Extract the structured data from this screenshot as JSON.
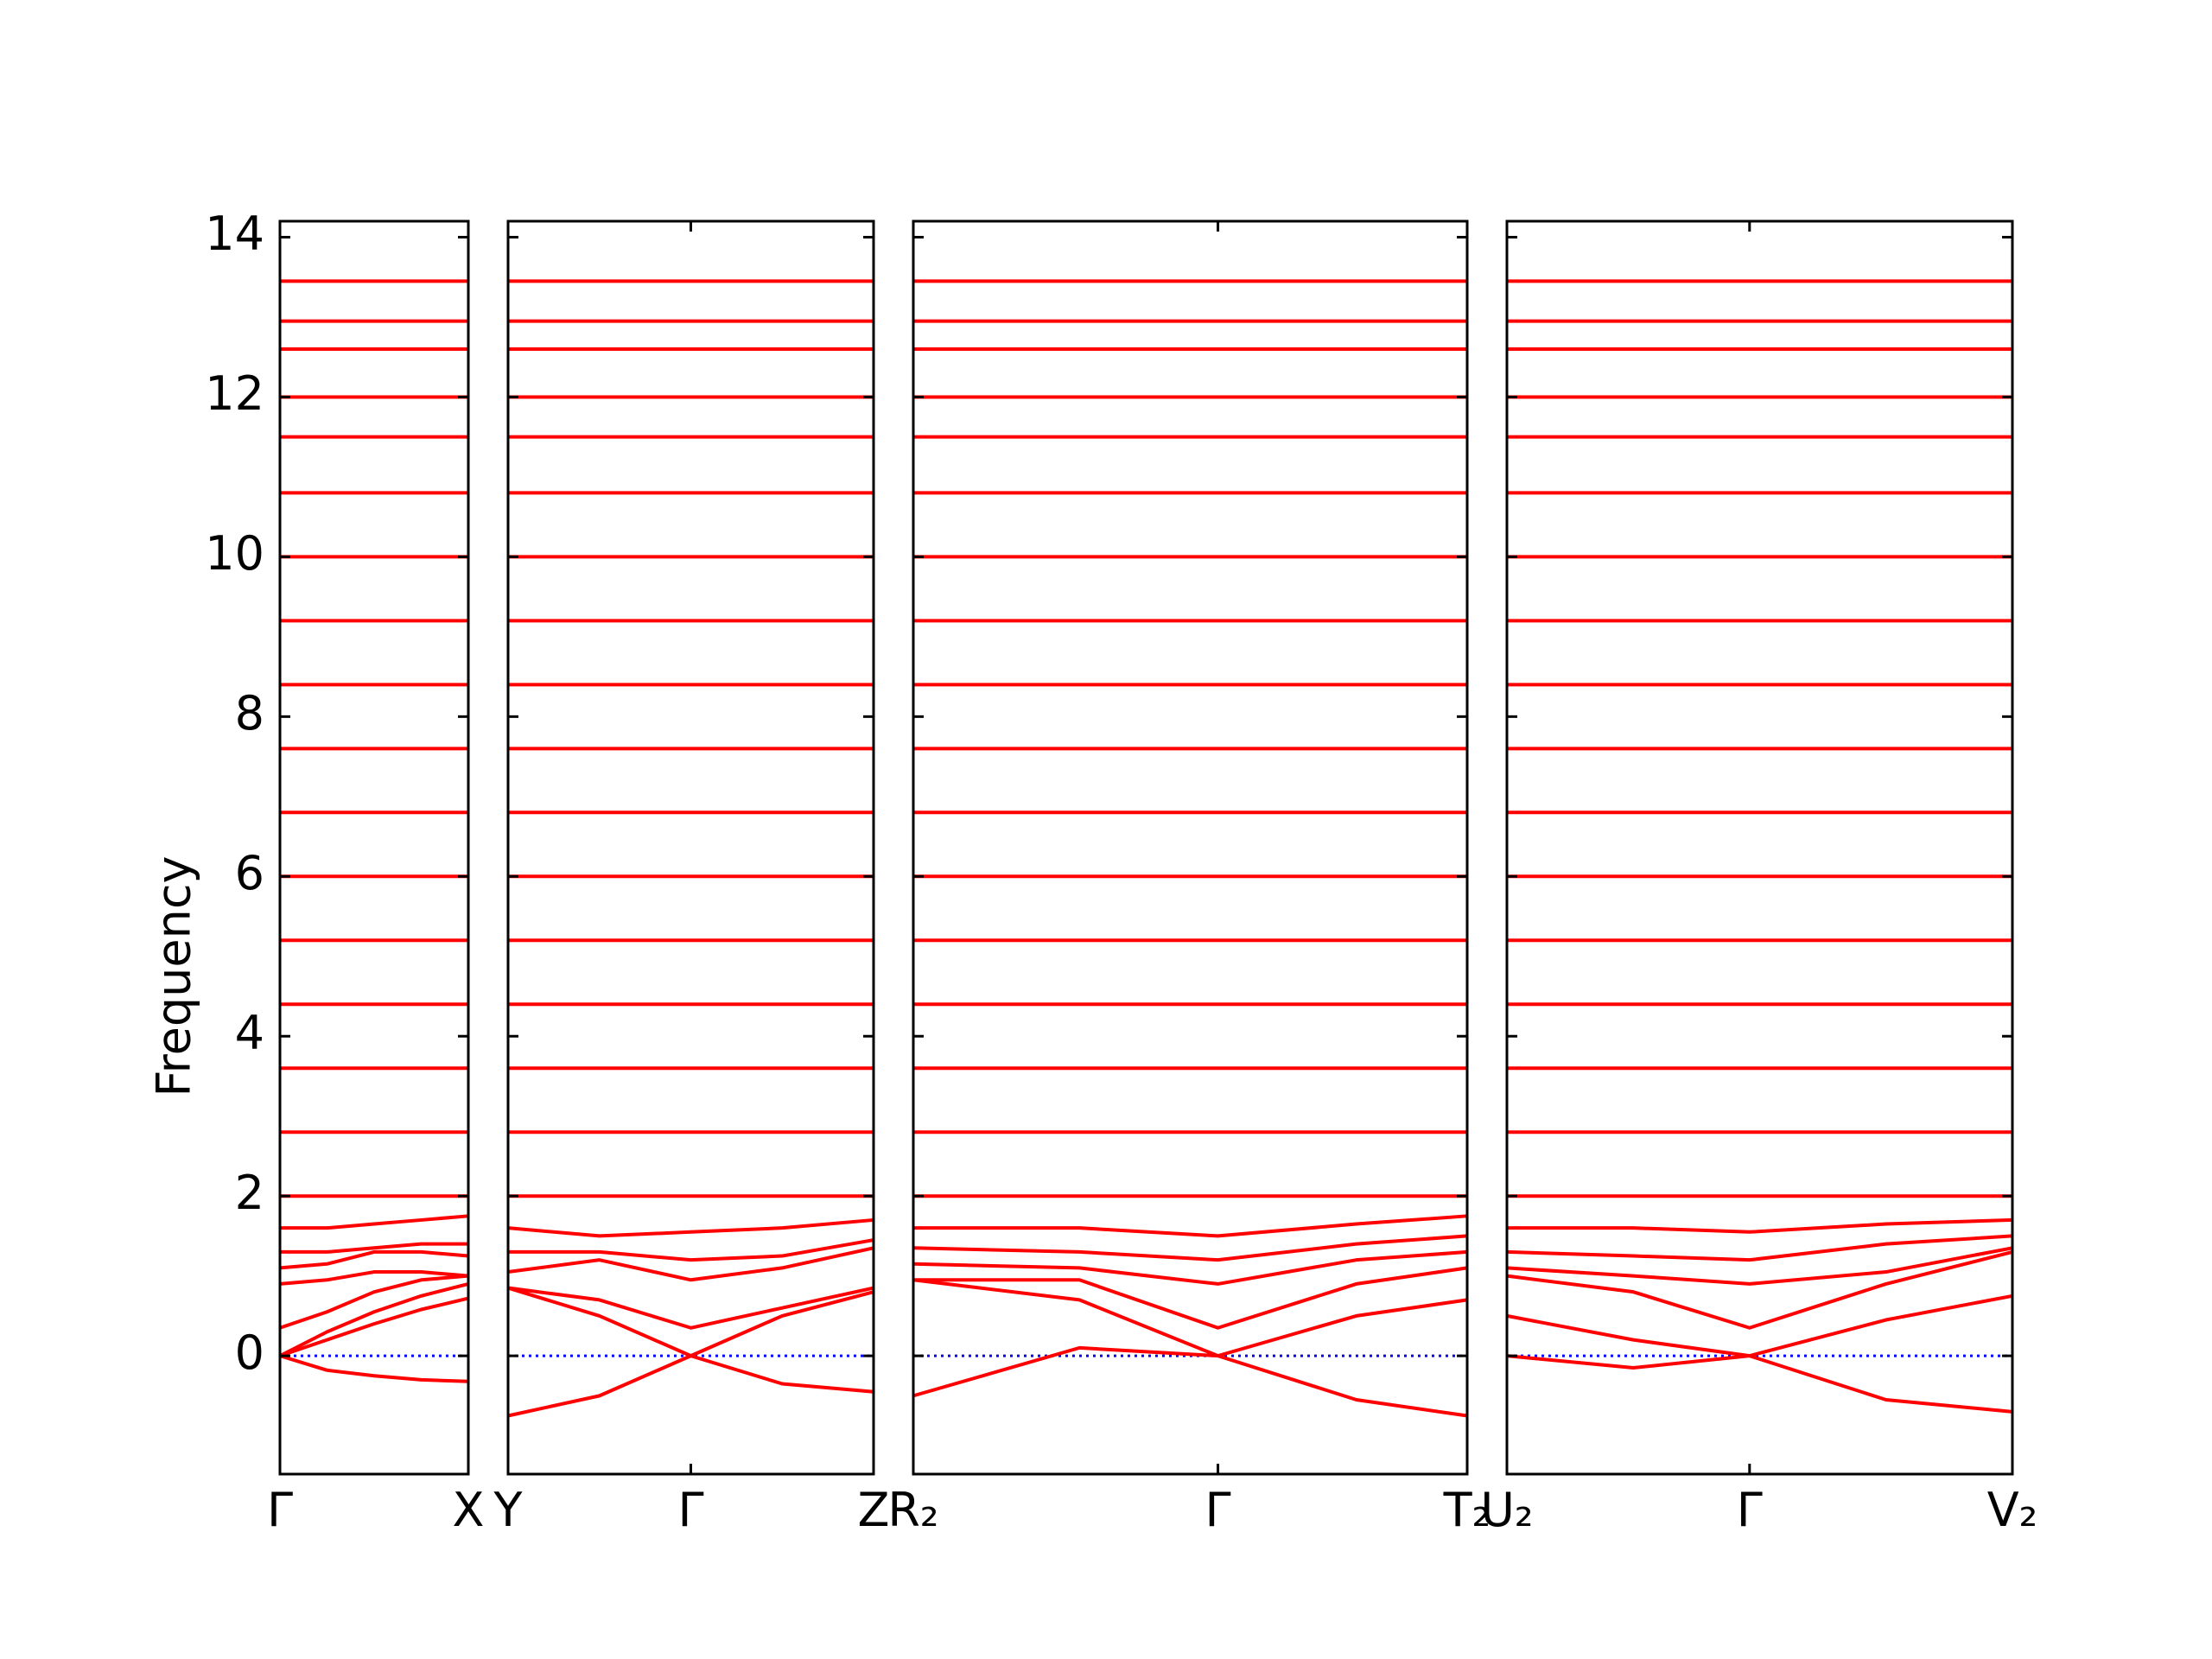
{
  "chart_data": {
    "type": "line",
    "ylabel": "Frequency",
    "color": "#ff0000",
    "zero_line_color": "#0000ff",
    "ylim": [
      -1.48,
      14.2
    ],
    "yticks": [
      0,
      2,
      4,
      6,
      8,
      10,
      12,
      14
    ],
    "panels": [
      {
        "xlim": [
          0,
          1
        ],
        "xticks": [
          {
            "value": 0,
            "label": "Γ"
          },
          {
            "value": 1,
            "label": "X"
          }
        ],
        "x": [
          0,
          0.25,
          0.5,
          0.75,
          1
        ],
        "series": [
          {
            "values": [
              0,
              -0.18,
              -0.25,
              -0.3,
              -0.32
            ]
          },
          {
            "values": [
              0,
              0.2,
              0.4,
              0.58,
              0.72
            ]
          },
          {
            "values": [
              0,
              0.3,
              0.55,
              0.75,
              0.9
            ]
          },
          {
            "values": [
              0.35,
              0.55,
              0.8,
              0.95,
              1.0
            ]
          },
          {
            "values": [
              0.9,
              0.95,
              1.05,
              1.05,
              1.0
            ]
          },
          {
            "values": [
              1.1,
              1.15,
              1.3,
              1.3,
              1.25
            ]
          },
          {
            "values": [
              1.3,
              1.3,
              1.35,
              1.4,
              1.4
            ]
          },
          {
            "values": [
              1.6,
              1.6,
              1.65,
              1.7,
              1.75
            ]
          },
          {
            "values": [
              2.0,
              2.0,
              2.0,
              2.0,
              2.0
            ]
          },
          {
            "values": [
              2.8,
              2.8,
              2.8,
              2.8,
              2.8
            ]
          },
          {
            "values": [
              3.6,
              3.6,
              3.6,
              3.6,
              3.6
            ]
          },
          {
            "values": [
              4.4,
              4.4,
              4.4,
              4.4,
              4.4
            ]
          },
          {
            "values": [
              5.2,
              5.2,
              5.2,
              5.2,
              5.2
            ]
          },
          {
            "values": [
              6.0,
              6.0,
              6.0,
              6.0,
              6.0
            ]
          },
          {
            "values": [
              6.8,
              6.8,
              6.8,
              6.8,
              6.8
            ]
          },
          {
            "values": [
              7.6,
              7.6,
              7.6,
              7.6,
              7.6
            ]
          },
          {
            "values": [
              8.4,
              8.4,
              8.4,
              8.4,
              8.4
            ]
          },
          {
            "values": [
              9.2,
              9.2,
              9.2,
              9.2,
              9.2
            ]
          },
          {
            "values": [
              10.0,
              10.0,
              10.0,
              10.0,
              10.0
            ]
          },
          {
            "values": [
              10.8,
              10.8,
              10.8,
              10.8,
              10.8
            ]
          },
          {
            "values": [
              11.5,
              11.5,
              11.5,
              11.5,
              11.5
            ]
          },
          {
            "values": [
              12.0,
              12.0,
              12.0,
              12.0,
              12.0
            ]
          },
          {
            "values": [
              12.6,
              12.6,
              12.6,
              12.6,
              12.6
            ]
          },
          {
            "values": [
              12.95,
              12.95,
              12.95,
              12.95,
              12.95
            ]
          },
          {
            "values": [
              13.45,
              13.45,
              13.45,
              13.45,
              13.45
            ]
          }
        ]
      },
      {
        "xlim": [
          0,
          2
        ],
        "xticks": [
          {
            "value": 0,
            "label": "Y"
          },
          {
            "value": 1,
            "label": "Γ"
          },
          {
            "value": 2,
            "label": "Z"
          }
        ],
        "x": [
          0,
          0.5,
          1,
          1.5,
          2
        ],
        "series": [
          {
            "values": [
              -0.75,
              -0.5,
              0,
              -0.35,
              -0.45
            ]
          },
          {
            "values": [
              0.85,
              0.5,
              0,
              0.5,
              0.8
            ]
          },
          {
            "values": [
              0.85,
              0.7,
              0.35,
              0.6,
              0.85
            ]
          },
          {
            "values": [
              1.05,
              1.2,
              0.95,
              1.1,
              1.35
            ]
          },
          {
            "values": [
              1.3,
              1.3,
              1.2,
              1.25,
              1.45
            ]
          },
          {
            "values": [
              1.6,
              1.5,
              1.55,
              1.6,
              1.7
            ]
          },
          {
            "values": [
              2.0,
              2.0,
              2.0,
              2.0,
              2.0
            ]
          },
          {
            "values": [
              2.8,
              2.8,
              2.8,
              2.8,
              2.8
            ]
          },
          {
            "values": [
              3.6,
              3.6,
              3.6,
              3.6,
              3.6
            ]
          },
          {
            "values": [
              4.4,
              4.4,
              4.4,
              4.4,
              4.4
            ]
          },
          {
            "values": [
              5.2,
              5.2,
              5.2,
              5.2,
              5.2
            ]
          },
          {
            "values": [
              6.0,
              6.0,
              6.0,
              6.0,
              6.0
            ]
          },
          {
            "values": [
              6.8,
              6.8,
              6.8,
              6.8,
              6.8
            ]
          },
          {
            "values": [
              7.6,
              7.6,
              7.6,
              7.6,
              7.6
            ]
          },
          {
            "values": [
              8.4,
              8.4,
              8.4,
              8.4,
              8.4
            ]
          },
          {
            "values": [
              9.2,
              9.2,
              9.2,
              9.2,
              9.2
            ]
          },
          {
            "values": [
              10.0,
              10.0,
              10.0,
              10.0,
              10.0
            ]
          },
          {
            "values": [
              10.8,
              10.8,
              10.8,
              10.8,
              10.8
            ]
          },
          {
            "values": [
              11.5,
              11.5,
              11.5,
              11.5,
              11.5
            ]
          },
          {
            "values": [
              12.0,
              12.0,
              12.0,
              12.0,
              12.0
            ]
          },
          {
            "values": [
              12.6,
              12.6,
              12.6,
              12.6,
              12.6
            ]
          },
          {
            "values": [
              12.95,
              12.95,
              12.95,
              12.95,
              12.95
            ]
          },
          {
            "values": [
              13.45,
              13.45,
              13.45,
              13.45,
              13.45
            ]
          }
        ]
      },
      {
        "xlim": [
          0,
          1
        ],
        "xticks": [
          {
            "value": 0,
            "label": "R₂"
          },
          {
            "value": 0.55,
            "label": "Γ"
          },
          {
            "value": 1,
            "label": "T₂"
          }
        ],
        "x": [
          0,
          0.3,
          0.55,
          0.8,
          1
        ],
        "series": [
          {
            "values": [
              -0.5,
              0.1,
              0,
              -0.55,
              -0.75
            ]
          },
          {
            "values": [
              0.95,
              0.7,
              0,
              0.5,
              0.7
            ]
          },
          {
            "values": [
              0.95,
              0.95,
              0.35,
              0.9,
              1.1
            ]
          },
          {
            "values": [
              1.15,
              1.1,
              0.9,
              1.2,
              1.3
            ]
          },
          {
            "values": [
              1.35,
              1.3,
              1.2,
              1.4,
              1.5
            ]
          },
          {
            "values": [
              1.6,
              1.6,
              1.5,
              1.65,
              1.75
            ]
          },
          {
            "values": [
              2.0,
              2.0,
              2.0,
              2.0,
              2.0
            ]
          },
          {
            "values": [
              2.8,
              2.8,
              2.8,
              2.8,
              2.8
            ]
          },
          {
            "values": [
              3.6,
              3.6,
              3.6,
              3.6,
              3.6
            ]
          },
          {
            "values": [
              4.4,
              4.4,
              4.4,
              4.4,
              4.4
            ]
          },
          {
            "values": [
              5.2,
              5.2,
              5.2,
              5.2,
              5.2
            ]
          },
          {
            "values": [
              6.0,
              6.0,
              6.0,
              6.0,
              6.0
            ]
          },
          {
            "values": [
              6.8,
              6.8,
              6.8,
              6.8,
              6.8
            ]
          },
          {
            "values": [
              7.6,
              7.6,
              7.6,
              7.6,
              7.6
            ]
          },
          {
            "values": [
              8.4,
              8.4,
              8.4,
              8.4,
              8.4
            ]
          },
          {
            "values": [
              9.2,
              9.2,
              9.2,
              9.2,
              9.2
            ]
          },
          {
            "values": [
              10.0,
              10.0,
              10.0,
              10.0,
              10.0
            ]
          },
          {
            "values": [
              10.8,
              10.8,
              10.8,
              10.8,
              10.8
            ]
          },
          {
            "values": [
              11.5,
              11.5,
              11.5,
              11.5,
              11.5
            ]
          },
          {
            "values": [
              12.0,
              12.0,
              12.0,
              12.0,
              12.0
            ]
          },
          {
            "values": [
              12.6,
              12.6,
              12.6,
              12.6,
              12.6
            ]
          },
          {
            "values": [
              12.95,
              12.95,
              12.95,
              12.95,
              12.95
            ]
          },
          {
            "values": [
              13.45,
              13.45,
              13.45,
              13.45,
              13.45
            ]
          }
        ]
      },
      {
        "xlim": [
          0,
          1
        ],
        "xticks": [
          {
            "value": 0,
            "label": "U₂"
          },
          {
            "value": 0.48,
            "label": "Γ"
          },
          {
            "value": 1,
            "label": "V₂"
          }
        ],
        "x": [
          0,
          0.25,
          0.48,
          0.75,
          1
        ],
        "series": [
          {
            "values": [
              0.5,
              0.2,
              0,
              -0.55,
              -0.7
            ]
          },
          {
            "values": [
              0,
              -0.15,
              0,
              0.45,
              0.75
            ]
          },
          {
            "values": [
              1.0,
              0.8,
              0.35,
              0.9,
              1.3
            ]
          },
          {
            "values": [
              1.1,
              1.0,
              0.9,
              1.05,
              1.35
            ]
          },
          {
            "values": [
              1.3,
              1.25,
              1.2,
              1.4,
              1.5
            ]
          },
          {
            "values": [
              1.6,
              1.6,
              1.55,
              1.65,
              1.7
            ]
          },
          {
            "values": [
              2.0,
              2.0,
              2.0,
              2.0,
              2.0
            ]
          },
          {
            "values": [
              2.8,
              2.8,
              2.8,
              2.8,
              2.8
            ]
          },
          {
            "values": [
              3.6,
              3.6,
              3.6,
              3.6,
              3.6
            ]
          },
          {
            "values": [
              4.4,
              4.4,
              4.4,
              4.4,
              4.4
            ]
          },
          {
            "values": [
              5.2,
              5.2,
              5.2,
              5.2,
              5.2
            ]
          },
          {
            "values": [
              6.0,
              6.0,
              6.0,
              6.0,
              6.0
            ]
          },
          {
            "values": [
              6.8,
              6.8,
              6.8,
              6.8,
              6.8
            ]
          },
          {
            "values": [
              7.6,
              7.6,
              7.6,
              7.6,
              7.6
            ]
          },
          {
            "values": [
              8.4,
              8.4,
              8.4,
              8.4,
              8.4
            ]
          },
          {
            "values": [
              9.2,
              9.2,
              9.2,
              9.2,
              9.2
            ]
          },
          {
            "values": [
              10.0,
              10.0,
              10.0,
              10.0,
              10.0
            ]
          },
          {
            "values": [
              10.8,
              10.8,
              10.8,
              10.8,
              10.8
            ]
          },
          {
            "values": [
              11.5,
              11.5,
              11.5,
              11.5,
              11.5
            ]
          },
          {
            "values": [
              12.0,
              12.0,
              12.0,
              12.0,
              12.0
            ]
          },
          {
            "values": [
              12.6,
              12.6,
              12.6,
              12.6,
              12.6
            ]
          },
          {
            "values": [
              12.95,
              12.95,
              12.95,
              12.95,
              12.95
            ]
          },
          {
            "values": [
              13.45,
              13.45,
              13.45,
              13.45,
              13.45
            ]
          }
        ]
      }
    ]
  }
}
